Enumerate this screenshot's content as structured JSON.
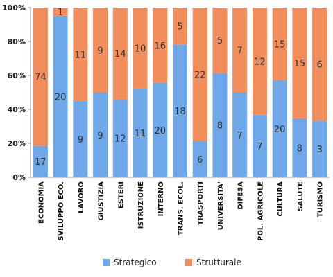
{
  "chart_data": {
    "type": "bar",
    "stacked": "percent",
    "categories": [
      "ECONOMIA",
      "SVILUPPO ECO.",
      "LAVORO",
      "GIUSTIZIA",
      "ESTERI",
      "ISTRUZIONE",
      "INTERNO",
      "TRANS. ECOL.",
      "TRASPORTI",
      "UNIVERSITA'",
      "DIFESA",
      "POL. AGRICOLE",
      "CULTURA",
      "SALUTE",
      "TURISMO"
    ],
    "series": [
      {
        "name": "Strategico",
        "color": "#6fa8e8",
        "values": [
          17,
          20,
          9,
          9,
          12,
          11,
          20,
          18,
          6,
          8,
          7,
          7,
          20,
          8,
          3
        ]
      },
      {
        "name": "Strutturale",
        "color": "#f28d5c",
        "values": [
          74,
          1,
          11,
          9,
          14,
          10,
          16,
          5,
          22,
          5,
          7,
          12,
          15,
          15,
          6
        ]
      }
    ],
    "yticks": [
      "0%",
      "20%",
      "40%",
      "60%",
      "80%",
      "100%"
    ],
    "ylim": [
      0,
      100
    ],
    "grid": false,
    "legend": "bottom"
  }
}
